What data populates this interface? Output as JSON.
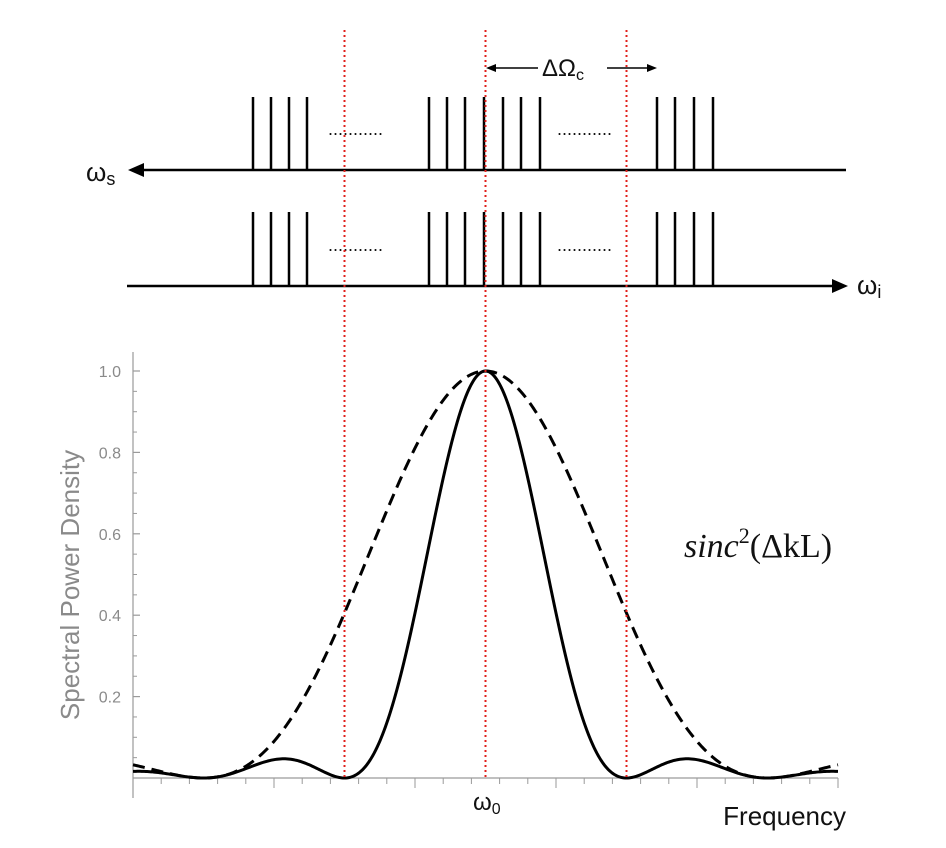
{
  "comb": {
    "signal_label_main": "ω",
    "signal_label_sub": "s",
    "idler_label_main": "ω",
    "idler_label_sub": "i",
    "spacing_label_main": "ΔΩ",
    "spacing_label_sub": "c",
    "ellipsis": "..........."
  },
  "formula": {
    "base": "sinc",
    "power": "2",
    "argument": "(ΔkL)"
  },
  "chart_data": {
    "type": "line",
    "title": "",
    "xlabel": "Frequency",
    "ylabel": "Spectral Power Density",
    "x_tick_label": "ω0",
    "x_tick_label_main": "ω",
    "x_tick_label_sub": "0",
    "xlim": [
      -2.5,
      2.5
    ],
    "ylim": [
      0,
      1.05
    ],
    "y_ticks": [
      {
        "value": 0.2,
        "label": "0.2"
      },
      {
        "value": 0.4,
        "label": "0.4"
      },
      {
        "value": 0.6,
        "label": "0.6"
      },
      {
        "value": 0.8,
        "label": "0.8"
      },
      {
        "value": 1.0,
        "label": "1.0"
      }
    ],
    "vertical_markers": [
      -1,
      0,
      1
    ],
    "series": [
      {
        "style": "solid",
        "function": "sinc^2(pi*x)",
        "color": "#000000"
      },
      {
        "style": "dashed",
        "function": "sinc^2(pi*x/2)",
        "color": "#000000"
      }
    ],
    "marker_color": "#e0201c",
    "axis_color": "#9a9a9a"
  }
}
